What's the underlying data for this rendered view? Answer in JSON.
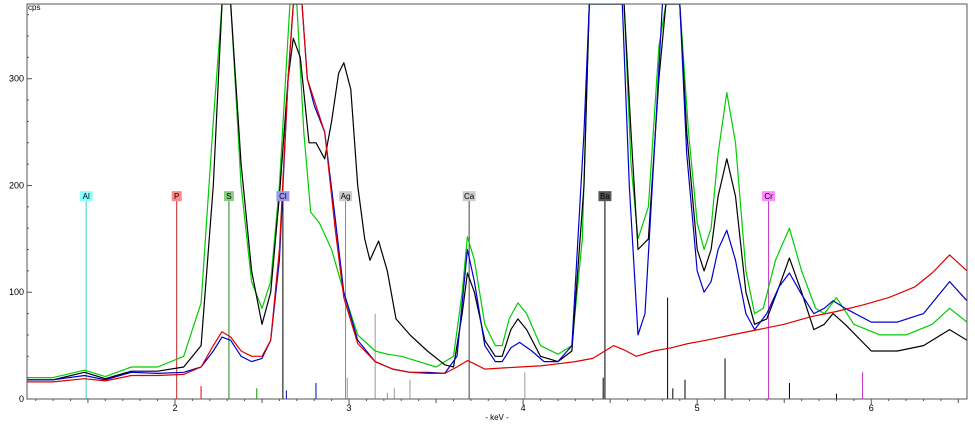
{
  "chart_data": {
    "type": "line",
    "title": "",
    "xlabel": "- keV -",
    "ylabel": "cps",
    "xlim": [
      1.15,
      6.55
    ],
    "ylim": [
      0,
      370
    ],
    "x_ticks": [
      2,
      3,
      4,
      5,
      6
    ],
    "y_ticks": [
      0,
      100,
      200,
      300
    ],
    "grid": false,
    "series": [
      {
        "color": "#00cc00",
        "points": [
          [
            1.15,
            20
          ],
          [
            1.3,
            20
          ],
          [
            1.48,
            27
          ],
          [
            1.6,
            21
          ],
          [
            1.75,
            30
          ],
          [
            1.9,
            30
          ],
          [
            2.05,
            40
          ],
          [
            2.15,
            90
          ],
          [
            2.22,
            260
          ],
          [
            2.27,
            370
          ],
          [
            2.32,
            370
          ],
          [
            2.38,
            200
          ],
          [
            2.44,
            110
          ],
          [
            2.5,
            85
          ],
          [
            2.55,
            110
          ],
          [
            2.6,
            200
          ],
          [
            2.66,
            370
          ],
          [
            2.7,
            370
          ],
          [
            2.74,
            250
          ],
          [
            2.78,
            175
          ],
          [
            2.83,
            165
          ],
          [
            2.9,
            140
          ],
          [
            2.97,
            100
          ],
          [
            3.05,
            60
          ],
          [
            3.15,
            45
          ],
          [
            3.22,
            42
          ],
          [
            3.3,
            40
          ],
          [
            3.4,
            35
          ],
          [
            3.5,
            30
          ],
          [
            3.6,
            40
          ],
          [
            3.65,
            100
          ],
          [
            3.68,
            152
          ],
          [
            3.72,
            130
          ],
          [
            3.78,
            70
          ],
          [
            3.84,
            50
          ],
          [
            3.88,
            50
          ],
          [
            3.92,
            75
          ],
          [
            3.97,
            90
          ],
          [
            4.02,
            80
          ],
          [
            4.1,
            50
          ],
          [
            4.2,
            42
          ],
          [
            4.28,
            50
          ],
          [
            4.34,
            150
          ],
          [
            4.38,
            370
          ],
          [
            4.58,
            370
          ],
          [
            4.62,
            220
          ],
          [
            4.66,
            150
          ],
          [
            4.72,
            180
          ],
          [
            4.78,
            330
          ],
          [
            4.82,
            370
          ],
          [
            4.9,
            370
          ],
          [
            4.95,
            250
          ],
          [
            5.0,
            165
          ],
          [
            5.04,
            140
          ],
          [
            5.08,
            160
          ],
          [
            5.12,
            230
          ],
          [
            5.17,
            287
          ],
          [
            5.22,
            240
          ],
          [
            5.28,
            120
          ],
          [
            5.33,
            80
          ],
          [
            5.38,
            85
          ],
          [
            5.45,
            130
          ],
          [
            5.53,
            160
          ],
          [
            5.6,
            120
          ],
          [
            5.68,
            85
          ],
          [
            5.73,
            80
          ],
          [
            5.8,
            95
          ],
          [
            5.9,
            70
          ],
          [
            6.05,
            60
          ],
          [
            6.2,
            60
          ],
          [
            6.35,
            70
          ],
          [
            6.45,
            85
          ],
          [
            6.55,
            72
          ]
        ]
      },
      {
        "color": "#000000",
        "points": [
          [
            1.15,
            18
          ],
          [
            1.3,
            18
          ],
          [
            1.48,
            25
          ],
          [
            1.6,
            19
          ],
          [
            1.75,
            26
          ],
          [
            1.9,
            26
          ],
          [
            2.05,
            30
          ],
          [
            2.15,
            50
          ],
          [
            2.22,
            200
          ],
          [
            2.27,
            370
          ],
          [
            2.32,
            370
          ],
          [
            2.38,
            220
          ],
          [
            2.44,
            120
          ],
          [
            2.5,
            70
          ],
          [
            2.55,
            100
          ],
          [
            2.6,
            190
          ],
          [
            2.65,
            300
          ],
          [
            2.68,
            338
          ],
          [
            2.72,
            320
          ],
          [
            2.77,
            240
          ],
          [
            2.81,
            240
          ],
          [
            2.86,
            225
          ],
          [
            2.9,
            260
          ],
          [
            2.94,
            305
          ],
          [
            2.97,
            315
          ],
          [
            3.01,
            290
          ],
          [
            3.05,
            200
          ],
          [
            3.09,
            150
          ],
          [
            3.12,
            130
          ],
          [
            3.17,
            148
          ],
          [
            3.22,
            120
          ],
          [
            3.27,
            75
          ],
          [
            3.35,
            60
          ],
          [
            3.45,
            45
          ],
          [
            3.55,
            32
          ],
          [
            3.6,
            30
          ],
          [
            3.65,
            80
          ],
          [
            3.68,
            118
          ],
          [
            3.72,
            100
          ],
          [
            3.78,
            55
          ],
          [
            3.84,
            40
          ],
          [
            3.88,
            40
          ],
          [
            3.93,
            65
          ],
          [
            3.97,
            75
          ],
          [
            4.02,
            65
          ],
          [
            4.1,
            40
          ],
          [
            4.2,
            35
          ],
          [
            4.28,
            45
          ],
          [
            4.35,
            200
          ],
          [
            4.38,
            370
          ],
          [
            4.58,
            370
          ],
          [
            4.62,
            250
          ],
          [
            4.66,
            140
          ],
          [
            4.72,
            150
          ],
          [
            4.78,
            300
          ],
          [
            4.82,
            370
          ],
          [
            4.9,
            370
          ],
          [
            4.94,
            250
          ],
          [
            5.0,
            140
          ],
          [
            5.04,
            120
          ],
          [
            5.08,
            140
          ],
          [
            5.12,
            190
          ],
          [
            5.17,
            225
          ],
          [
            5.22,
            190
          ],
          [
            5.28,
            100
          ],
          [
            5.33,
            70
          ],
          [
            5.4,
            75
          ],
          [
            5.47,
            105
          ],
          [
            5.53,
            132
          ],
          [
            5.6,
            100
          ],
          [
            5.67,
            65
          ],
          [
            5.73,
            70
          ],
          [
            5.78,
            80
          ],
          [
            5.85,
            70
          ],
          [
            6.0,
            45
          ],
          [
            6.15,
            45
          ],
          [
            6.3,
            50
          ],
          [
            6.45,
            65
          ],
          [
            6.55,
            55
          ]
        ]
      },
      {
        "color": "#0000cc",
        "points": [
          [
            1.15,
            18
          ],
          [
            1.3,
            18
          ],
          [
            1.48,
            22
          ],
          [
            1.6,
            18
          ],
          [
            1.75,
            25
          ],
          [
            1.9,
            24
          ],
          [
            2.05,
            25
          ],
          [
            2.15,
            30
          ],
          [
            2.22,
            45
          ],
          [
            2.27,
            58
          ],
          [
            2.32,
            55
          ],
          [
            2.38,
            40
          ],
          [
            2.44,
            35
          ],
          [
            2.5,
            38
          ],
          [
            2.55,
            55
          ],
          [
            2.6,
            130
          ],
          [
            2.65,
            300
          ],
          [
            2.68,
            370
          ],
          [
            2.73,
            370
          ],
          [
            2.76,
            300
          ],
          [
            2.8,
            275
          ],
          [
            2.86,
            250
          ],
          [
            2.92,
            170
          ],
          [
            2.97,
            100
          ],
          [
            3.05,
            55
          ],
          [
            3.15,
            35
          ],
          [
            3.25,
            28
          ],
          [
            3.35,
            25
          ],
          [
            3.45,
            25
          ],
          [
            3.55,
            24
          ],
          [
            3.62,
            40
          ],
          [
            3.68,
            140
          ],
          [
            3.72,
            110
          ],
          [
            3.78,
            50
          ],
          [
            3.84,
            35
          ],
          [
            3.88,
            35
          ],
          [
            3.93,
            48
          ],
          [
            3.98,
            53
          ],
          [
            4.05,
            45
          ],
          [
            4.12,
            35
          ],
          [
            4.2,
            35
          ],
          [
            4.28,
            50
          ],
          [
            4.35,
            250
          ],
          [
            4.38,
            370
          ],
          [
            4.57,
            370
          ],
          [
            4.61,
            200
          ],
          [
            4.66,
            60
          ],
          [
            4.7,
            80
          ],
          [
            4.76,
            250
          ],
          [
            4.8,
            370
          ],
          [
            4.9,
            370
          ],
          [
            4.94,
            230
          ],
          [
            5.0,
            120
          ],
          [
            5.04,
            100
          ],
          [
            5.08,
            110
          ],
          [
            5.12,
            140
          ],
          [
            5.17,
            158
          ],
          [
            5.22,
            130
          ],
          [
            5.28,
            80
          ],
          [
            5.33,
            65
          ],
          [
            5.4,
            80
          ],
          [
            5.47,
            105
          ],
          [
            5.53,
            118
          ],
          [
            5.6,
            98
          ],
          [
            5.67,
            80
          ],
          [
            5.73,
            85
          ],
          [
            5.78,
            92
          ],
          [
            5.85,
            85
          ],
          [
            6.0,
            72
          ],
          [
            6.15,
            72
          ],
          [
            6.3,
            80
          ],
          [
            6.45,
            110
          ],
          [
            6.55,
            92
          ]
        ]
      },
      {
        "color": "#dd0000",
        "points": [
          [
            1.15,
            16
          ],
          [
            1.3,
            16
          ],
          [
            1.48,
            19
          ],
          [
            1.6,
            17
          ],
          [
            1.75,
            22
          ],
          [
            1.9,
            22
          ],
          [
            2.05,
            23
          ],
          [
            2.15,
            30
          ],
          [
            2.22,
            50
          ],
          [
            2.27,
            63
          ],
          [
            2.32,
            58
          ],
          [
            2.38,
            45
          ],
          [
            2.44,
            40
          ],
          [
            2.5,
            40
          ],
          [
            2.55,
            55
          ],
          [
            2.6,
            140
          ],
          [
            2.65,
            300
          ],
          [
            2.68,
            370
          ],
          [
            2.73,
            370
          ],
          [
            2.76,
            300
          ],
          [
            2.8,
            280
          ],
          [
            2.86,
            250
          ],
          [
            2.92,
            160
          ],
          [
            2.97,
            95
          ],
          [
            3.05,
            52
          ],
          [
            3.15,
            35
          ],
          [
            3.25,
            28
          ],
          [
            3.35,
            25
          ],
          [
            3.45,
            24
          ],
          [
            3.55,
            24
          ],
          [
            3.62,
            30
          ],
          [
            3.68,
            36
          ],
          [
            3.72,
            33
          ],
          [
            3.78,
            28
          ],
          [
            3.88,
            29
          ],
          [
            3.98,
            30
          ],
          [
            4.1,
            31
          ],
          [
            4.2,
            33
          ],
          [
            4.3,
            35
          ],
          [
            4.4,
            38
          ],
          [
            4.47,
            45
          ],
          [
            4.52,
            50
          ],
          [
            4.58,
            46
          ],
          [
            4.65,
            40
          ],
          [
            4.75,
            45
          ],
          [
            4.85,
            48
          ],
          [
            4.95,
            52
          ],
          [
            5.05,
            55
          ],
          [
            5.2,
            60
          ],
          [
            5.35,
            65
          ],
          [
            5.5,
            70
          ],
          [
            5.65,
            77
          ],
          [
            5.8,
            82
          ],
          [
            5.95,
            88
          ],
          [
            6.1,
            95
          ],
          [
            6.25,
            105
          ],
          [
            6.35,
            118
          ],
          [
            6.45,
            135
          ],
          [
            6.55,
            120
          ]
        ]
      }
    ],
    "element_markers": [
      {
        "symbol": "Al",
        "energy": 1.49,
        "color": "#44cccc",
        "bg": "#88ffff",
        "height": 190
      },
      {
        "symbol": "P",
        "energy": 2.01,
        "color": "#cc2222",
        "bg": "#ff8888",
        "height": 190
      },
      {
        "symbol": "S",
        "energy": 2.31,
        "color": "#228822",
        "bg": "#88cc88",
        "height": 190
      },
      {
        "symbol": "Cl",
        "energy": 2.62,
        "color": "#000000",
        "bg": "#9999ee",
        "height": 190
      },
      {
        "symbol": "Ag",
        "energy": 2.98,
        "color": "#888888",
        "bg": "#cccccc",
        "height": 190
      },
      {
        "symbol": "Ca",
        "energy": 3.69,
        "color": "#444444",
        "bg": "#cccccc",
        "height": 190
      },
      {
        "symbol": "Ba",
        "energy": 4.47,
        "color": "#000000",
        "bg": "#555555",
        "height": 190
      },
      {
        "symbol": "Cr",
        "energy": 5.41,
        "color": "#cc33cc",
        "bg": "#ff88ff",
        "height": 190
      }
    ],
    "minor_lines": [
      {
        "energy": 2.15,
        "height": 12,
        "color": "#dd0000"
      },
      {
        "energy": 2.47,
        "height": 10,
        "color": "#009900"
      },
      {
        "energy": 2.64,
        "height": 8,
        "color": "#0000cc"
      },
      {
        "energy": 2.81,
        "height": 15,
        "color": "#0000cc"
      },
      {
        "energy": 2.99,
        "height": 20,
        "color": "#999999"
      },
      {
        "energy": 3.15,
        "height": 80,
        "color": "#999999"
      },
      {
        "energy": 3.22,
        "height": 6,
        "color": "#999999"
      },
      {
        "energy": 3.26,
        "height": 10,
        "color": "#999999"
      },
      {
        "energy": 3.35,
        "height": 18,
        "color": "#999999"
      },
      {
        "energy": 4.01,
        "height": 25,
        "color": "#999999"
      },
      {
        "energy": 4.46,
        "height": 20,
        "color": "#000000"
      },
      {
        "energy": 4.83,
        "height": 95,
        "color": "#000000"
      },
      {
        "energy": 4.86,
        "height": 10,
        "color": "#000000"
      },
      {
        "energy": 4.93,
        "height": 18,
        "color": "#000000"
      },
      {
        "energy": 5.16,
        "height": 38,
        "color": "#000000"
      },
      {
        "energy": 5.53,
        "height": 15,
        "color": "#000000"
      },
      {
        "energy": 5.8,
        "height": 5,
        "color": "#000000"
      },
      {
        "energy": 5.95,
        "height": 25,
        "color": "#cc33cc"
      }
    ]
  }
}
